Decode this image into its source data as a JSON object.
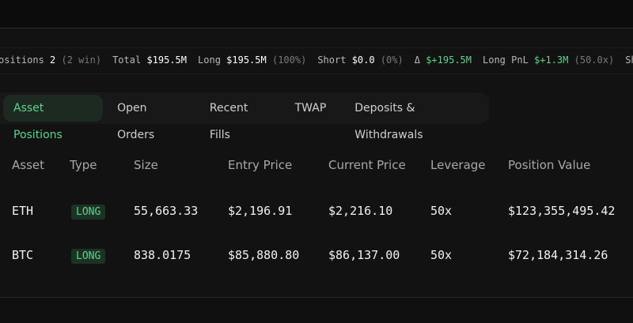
{
  "stats": [
    {
      "label": "ositions",
      "value": "2",
      "note": "(2 win)"
    },
    {
      "label": "Total",
      "value": "$195.5M"
    },
    {
      "label": "Long",
      "value": "$195.5M",
      "note": "(100%)"
    },
    {
      "label": "Short",
      "value": "$0.0",
      "note": "(0%)"
    },
    {
      "label": "Δ",
      "value": "$+195.5M",
      "positive": true
    },
    {
      "label": "Long PnL",
      "value": "$+1.3M",
      "note": "(50.0x)",
      "positive": true
    },
    {
      "label": "Sho"
    }
  ],
  "tabs": {
    "items": [
      "Asset Positions",
      "Open Orders",
      "Recent Fills",
      "TWAP",
      "Deposits & Withdrawals"
    ],
    "active": 0
  },
  "table": {
    "headers": [
      "Asset",
      "Type",
      "Size",
      "Entry Price",
      "Current Price",
      "Leverage",
      "Position Value"
    ],
    "rows": [
      [
        "ETH",
        "LONG",
        "55,663.33",
        "$2,196.91",
        "$2,216.10",
        "50x",
        "$123,355,495.42"
      ],
      [
        "BTC",
        "LONG",
        "838.0175",
        "$85,880.80",
        "$86,137.00",
        "50x",
        "$72,184,314.26"
      ]
    ]
  }
}
